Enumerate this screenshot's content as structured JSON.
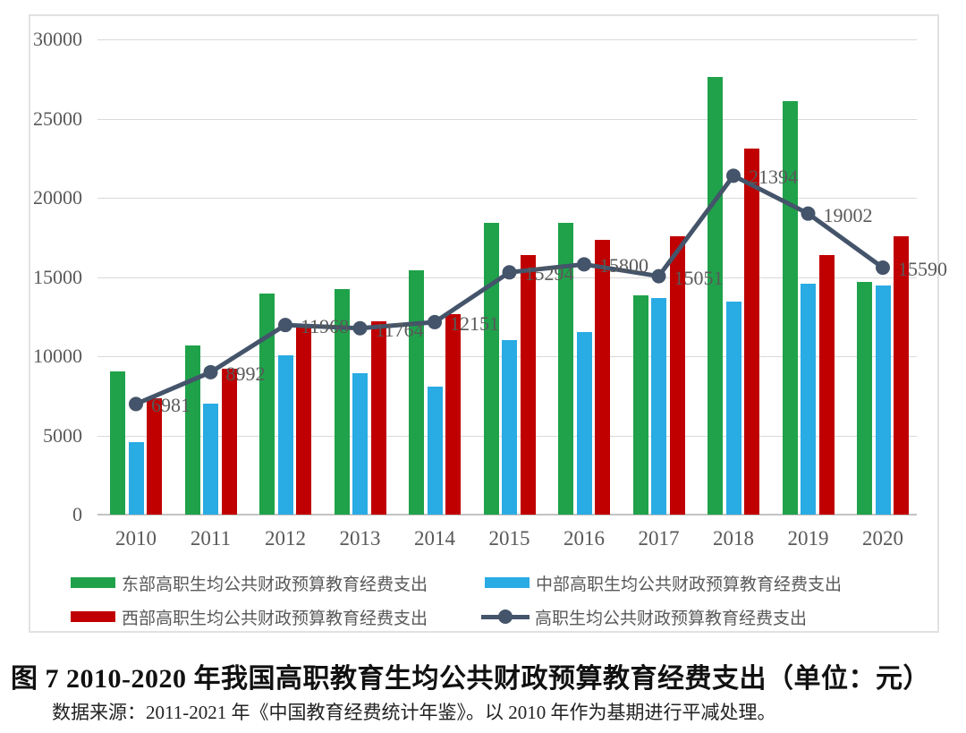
{
  "chart_data": {
    "type": "bar",
    "subtype": "grouped-bars-with-line-overlay",
    "title": "图 7 2010-2020 年我国高职教育生均公共财政预算教育经费支出（单位：元）",
    "source_note": "数据来源：2011-2021 年《中国教育经费统计年鉴》。以 2010 年作为基期进行平减处理。",
    "categories": [
      "2010",
      "2011",
      "2012",
      "2013",
      "2014",
      "2015",
      "2016",
      "2017",
      "2018",
      "2019",
      "2020"
    ],
    "y_axis": {
      "min": 0,
      "max": 30000,
      "step": 5000,
      "tick_labels": [
        "0",
        "5000",
        "10000",
        "15000",
        "20000",
        "25000",
        "30000"
      ]
    },
    "grid": true,
    "legend_position": "bottom",
    "series": [
      {
        "key": "east",
        "name": "东部高职生均公共财政预算教育经费支出",
        "type": "bar",
        "color": "#1fa24a",
        "values": [
          9050,
          10700,
          13950,
          14250,
          15400,
          18400,
          18400,
          13850,
          27600,
          26100,
          14700
        ]
      },
      {
        "key": "central",
        "name": "中部高职生均公共财政预算教育经费支出",
        "type": "bar",
        "color": "#29abe3",
        "values": [
          4550,
          7000,
          10050,
          8900,
          8100,
          11000,
          11550,
          13650,
          13450,
          14550,
          14450
        ]
      },
      {
        "key": "west",
        "name": "西部高职生均公共财政预算教育经费支出",
        "type": "bar",
        "color": "#c00000",
        "values": [
          7350,
          9200,
          11900,
          12200,
          12650,
          16400,
          17350,
          17550,
          23100,
          16400,
          17550
        ]
      },
      {
        "key": "overall",
        "name": "高职生均公共财政预算教育经费支出",
        "type": "line",
        "color": "#44546a",
        "data_labels_shown": true,
        "values": [
          6981,
          8992,
          11968,
          11764,
          12151,
          15294,
          15800,
          15051,
          21394,
          19002,
          15590
        ]
      }
    ],
    "style": {
      "gridline_color": "#d9d9d9",
      "axis_line_color": "#c3c3c3",
      "axis_text_color": "#595959",
      "data_label_color": "#595959",
      "border_color": "#e2e2e2"
    }
  }
}
